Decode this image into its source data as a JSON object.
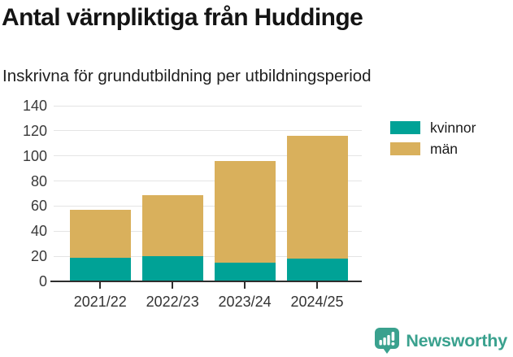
{
  "chart_data": {
    "type": "bar",
    "stacked": true,
    "title": "Antal värnpliktiga från Huddinge",
    "subtitle": "Inskrivna för grundutbildning per utbildningsperiod",
    "categories": [
      "2021/22",
      "2022/23",
      "2023/24",
      "2024/25"
    ],
    "series": [
      {
        "name": "kvinnor",
        "color": "#00a296",
        "values": [
          19,
          20,
          15,
          18
        ]
      },
      {
        "name": "män",
        "color": "#d9b05c",
        "values": [
          38,
          49,
          81,
          98
        ]
      }
    ],
    "totals": [
      57,
      69,
      96,
      116
    ],
    "xlabel": "",
    "ylabel": "",
    "ylim": [
      0,
      140
    ],
    "ytick_step": 20,
    "grid": true,
    "legend_position": "right"
  },
  "colors": {
    "kvinnor": "#00a296",
    "man": "#d9b05c",
    "gridline": "#e4e4e4",
    "axis_line": "#2e2e2e",
    "tick_label": "#3a3a3a",
    "title_text": "#141414",
    "brand_teal": "#3aa18e"
  },
  "footer": {
    "brand": "Newsworthy"
  }
}
